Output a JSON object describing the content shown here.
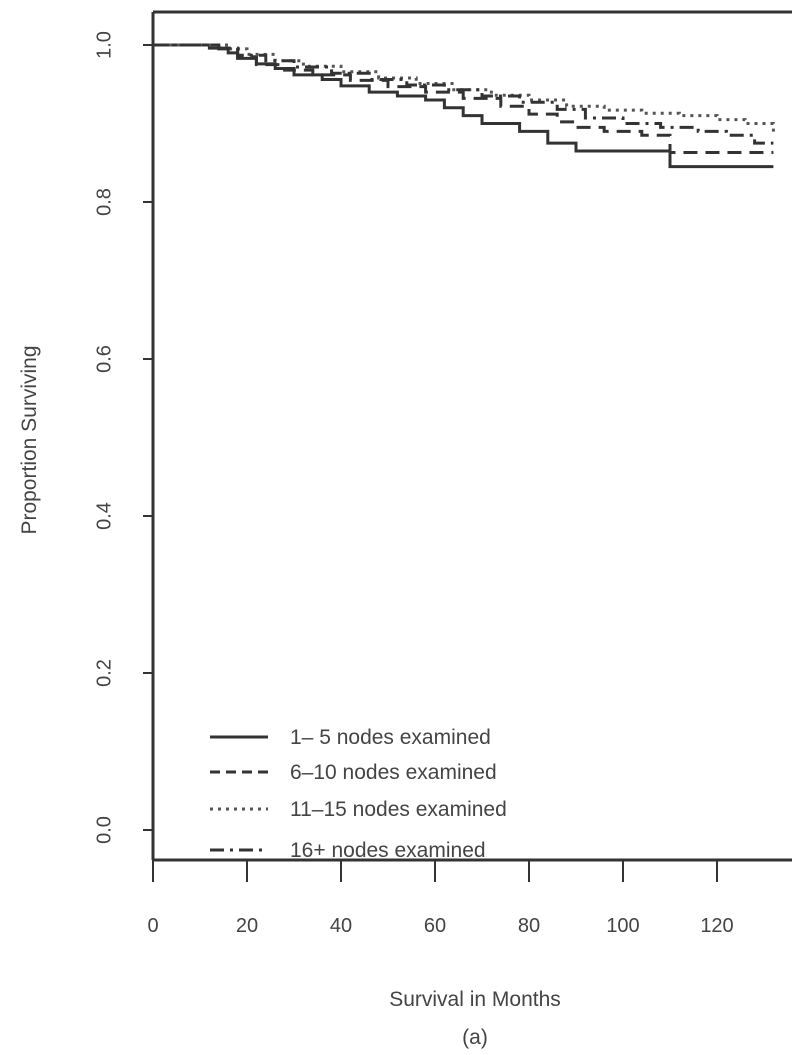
{
  "chart_data": {
    "type": "line",
    "title": "",
    "xlabel": "Survival in Months",
    "ylabel": "Proportion Surviving",
    "caption": "(a)",
    "xlim": [
      0,
      132
    ],
    "ylim": [
      -0.04,
      1.04
    ],
    "x_ticks": [
      0,
      20,
      40,
      60,
      80,
      100,
      120
    ],
    "x_tick_labels": [
      "0",
      "20",
      "40",
      "60",
      "80",
      "100",
      "120"
    ],
    "y_ticks": [
      0.0,
      0.2,
      0.4,
      0.6,
      0.8,
      1.0
    ],
    "y_tick_labels": [
      "0.0",
      "0.2",
      "0.4",
      "0.6",
      "0.8",
      "1.0"
    ],
    "grid": false,
    "legend_position": "bottom-left",
    "step": true,
    "series": [
      {
        "name": "1–  5 nodes examined",
        "style": "solid",
        "color": "#333333",
        "x": [
          0,
          12,
          16,
          18,
          22,
          26,
          30,
          36,
          40,
          46,
          52,
          58,
          62,
          66,
          70,
          78,
          84,
          90,
          100,
          108,
          110,
          124,
          132
        ],
        "y": [
          1.0,
          0.996,
          0.99,
          0.983,
          0.976,
          0.97,
          0.962,
          0.956,
          0.948,
          0.94,
          0.935,
          0.93,
          0.92,
          0.91,
          0.9,
          0.89,
          0.875,
          0.865,
          0.865,
          0.865,
          0.845,
          0.845,
          0.845
        ]
      },
      {
        "name": "6–10 nodes examined",
        "style": "dashed",
        "color": "#333333",
        "x": [
          0,
          14,
          18,
          22,
          28,
          34,
          42,
          50,
          58,
          66,
          74,
          80,
          86,
          90,
          96,
          104,
          110,
          122,
          132
        ],
        "y": [
          1.0,
          0.995,
          0.985,
          0.975,
          0.968,
          0.962,
          0.955,
          0.947,
          0.94,
          0.932,
          0.922,
          0.912,
          0.902,
          0.895,
          0.89,
          0.885,
          0.863,
          0.863,
          0.863
        ]
      },
      {
        "name": "11–15 nodes examined",
        "style": "dotted",
        "color": "#555555",
        "x": [
          0,
          16,
          20,
          26,
          32,
          40,
          48,
          56,
          64,
          72,
          80,
          88,
          96,
          104,
          112,
          120,
          126,
          132
        ],
        "y": [
          1.0,
          0.995,
          0.988,
          0.98,
          0.973,
          0.966,
          0.958,
          0.951,
          0.943,
          0.936,
          0.93,
          0.922,
          0.917,
          0.913,
          0.91,
          0.905,
          0.9,
          0.888
        ]
      },
      {
        "name": "16+    nodes examined",
        "style": "dashdot",
        "color": "#333333",
        "x": [
          0,
          14,
          18,
          24,
          30,
          38,
          46,
          54,
          62,
          70,
          78,
          86,
          92,
          100,
          108,
          116,
          122,
          128,
          132
        ],
        "y": [
          1.0,
          0.996,
          0.987,
          0.98,
          0.972,
          0.964,
          0.956,
          0.949,
          0.943,
          0.935,
          0.927,
          0.918,
          0.907,
          0.9,
          0.895,
          0.89,
          0.885,
          0.875,
          0.875
        ]
      }
    ]
  }
}
